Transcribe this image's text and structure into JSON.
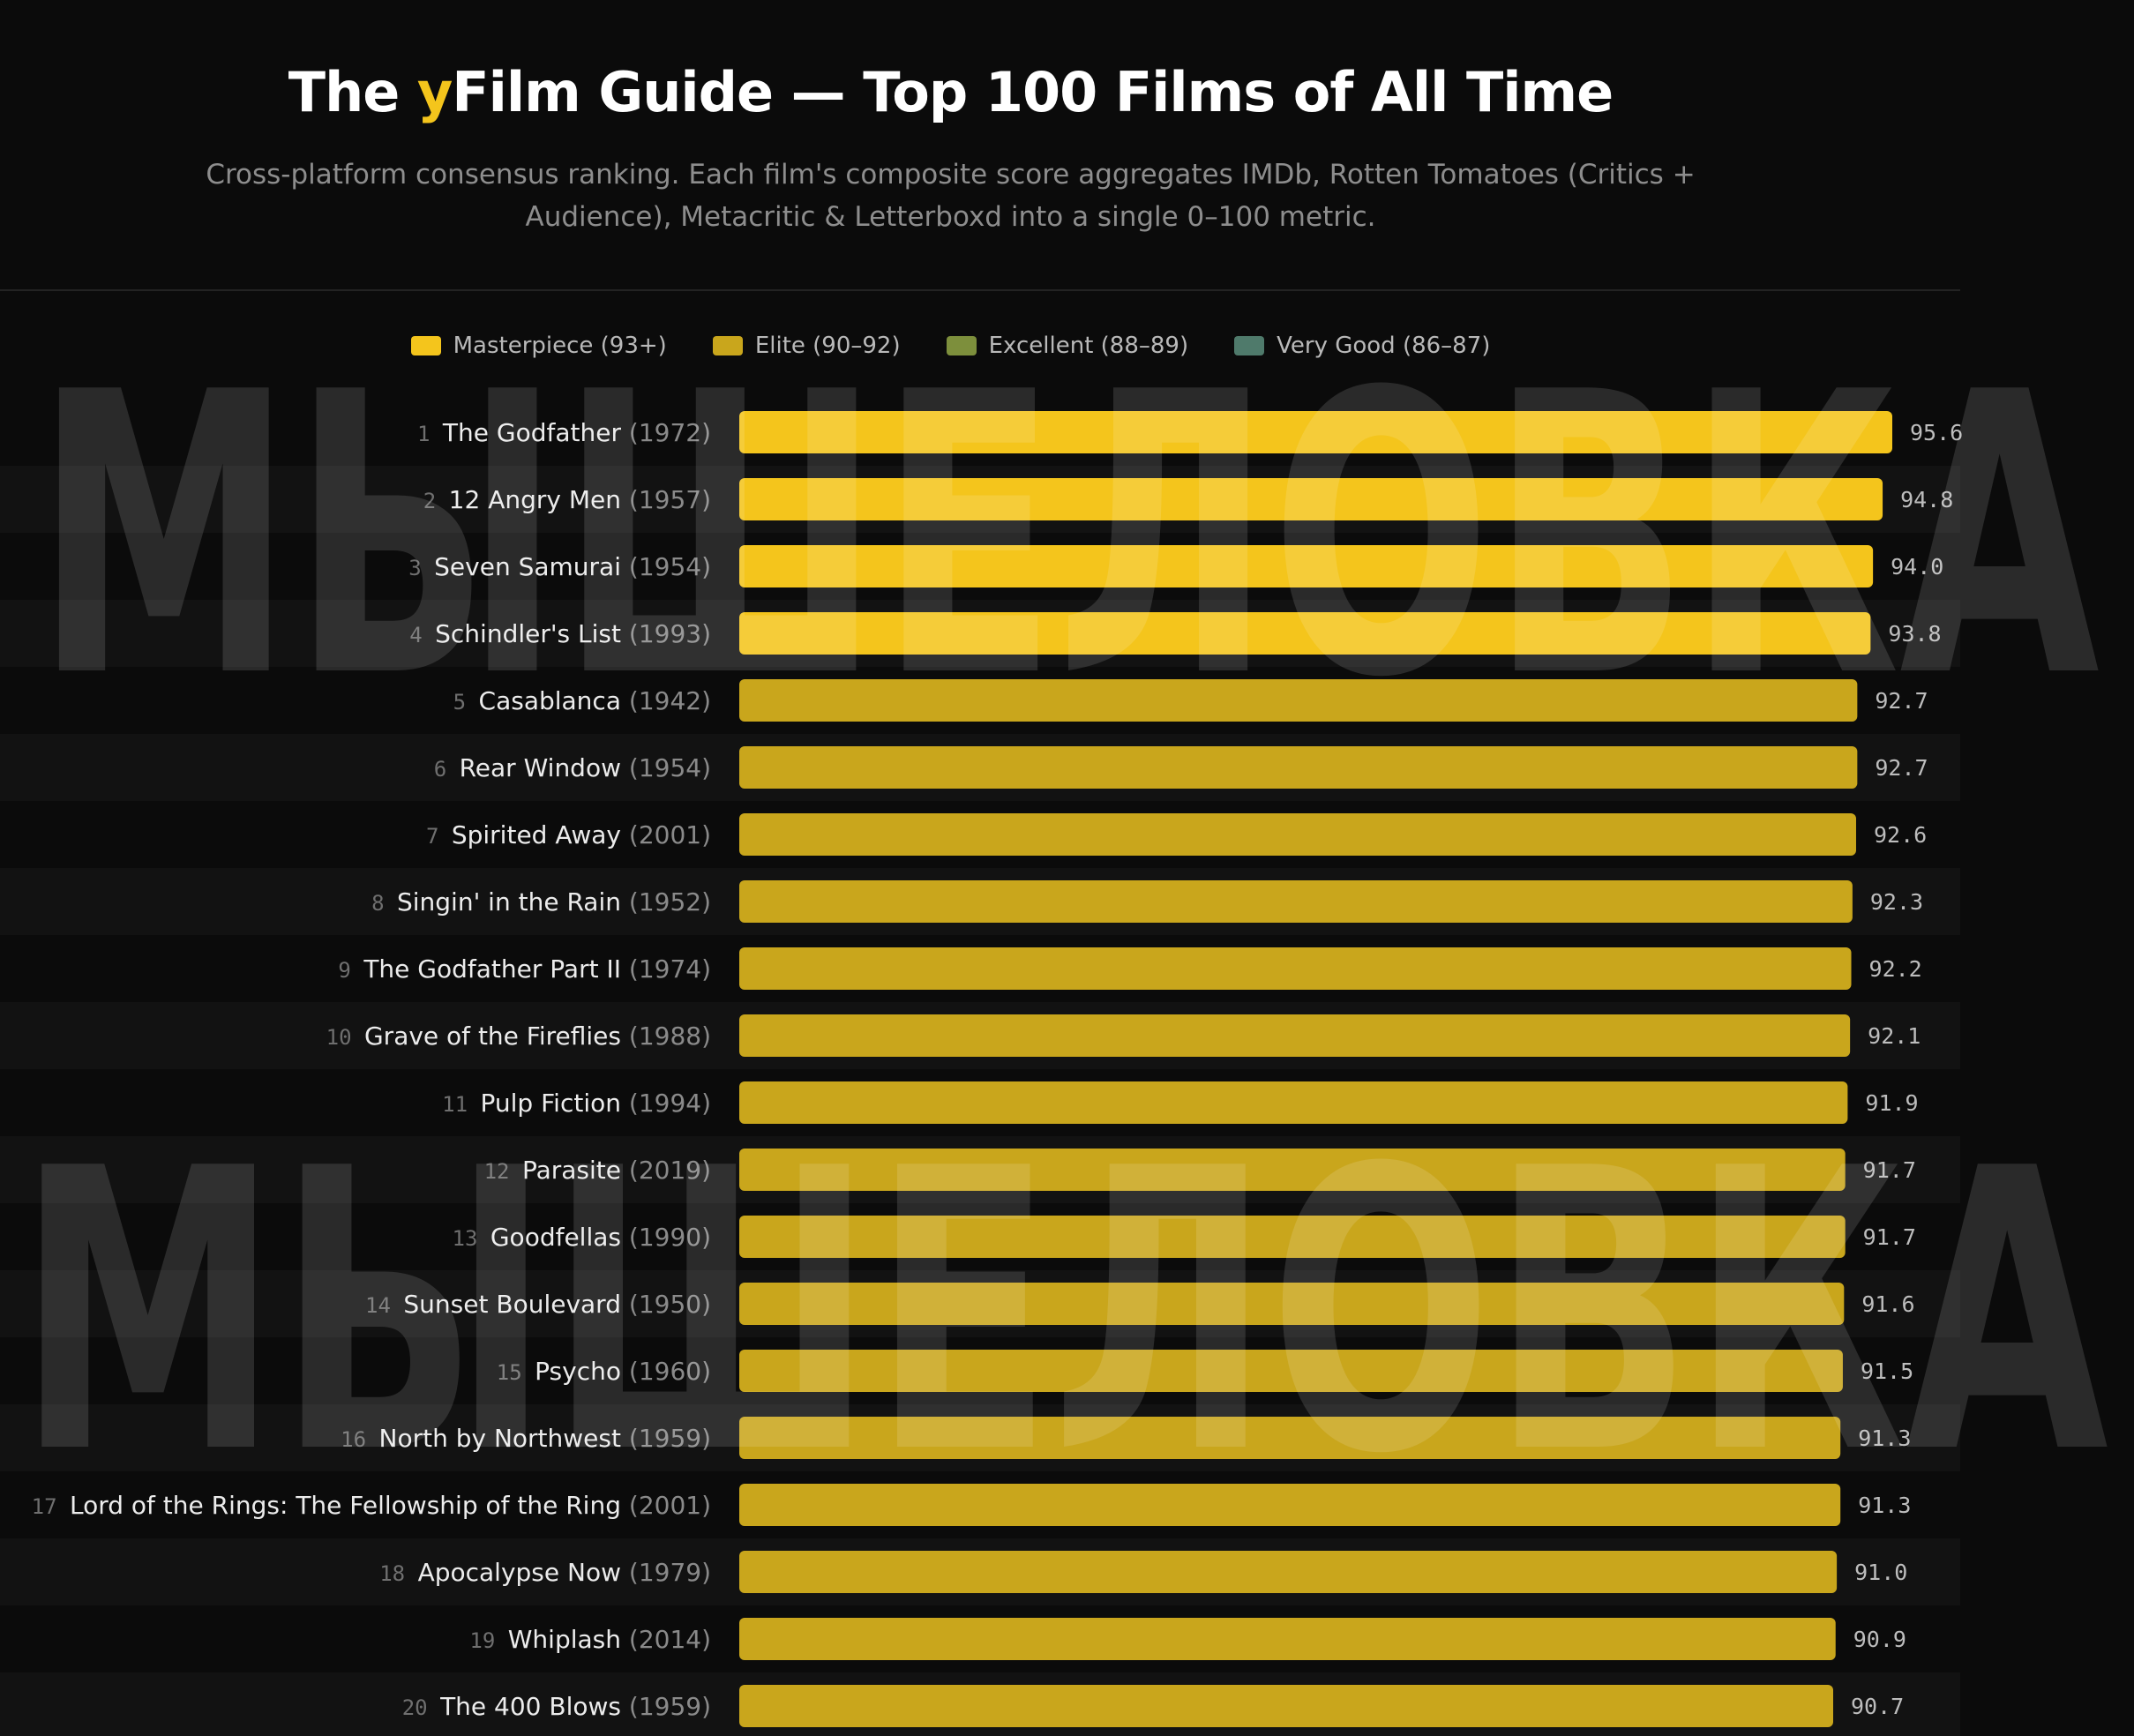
{
  "title": {
    "prefix": "The ",
    "accent": "y",
    "rest": "Film Guide — Top 100 Films of All Time"
  },
  "subtitle": "Cross-platform consensus ranking. Each film's composite score aggregates IMDb, Rotten Tomatoes (Critics + Audience), Metacritic & Letterboxd into a single 0–100 metric.",
  "legend": [
    {
      "label": "Masterpiece (93+)",
      "color": "#f4c51c"
    },
    {
      "label": "Elite (90–92)",
      "color": "#c9a61c"
    },
    {
      "label": "Excellent (88–89)",
      "color": "#7d8f3c"
    },
    {
      "label": "Very Good (86–87)",
      "color": "#4f7a6b"
    }
  ],
  "watermark": "МЫШЕЛОВКА",
  "chart_data": {
    "type": "bar",
    "orientation": "horizontal",
    "xlim": [
      0,
      95.6
    ],
    "grid": false,
    "legend_position": "top",
    "colors": {
      "masterpiece": "#f4c51c",
      "elite": "#c9a61c",
      "excellent": "#7d8f3c",
      "very_good": "#4f7a6b"
    },
    "rows": [
      {
        "rank": "1",
        "title": "The Godfather",
        "year": "(1972)",
        "value": 95.6,
        "label": "95.6",
        "tier": "masterpiece"
      },
      {
        "rank": "2",
        "title": "12 Angry Men",
        "year": "(1957)",
        "value": 94.8,
        "label": "94.8",
        "tier": "masterpiece"
      },
      {
        "rank": "3",
        "title": "Seven Samurai",
        "year": "(1954)",
        "value": 94.0,
        "label": "94.0",
        "tier": "masterpiece"
      },
      {
        "rank": "4",
        "title": "Schindler's List",
        "year": "(1993)",
        "value": 93.8,
        "label": "93.8",
        "tier": "masterpiece"
      },
      {
        "rank": "5",
        "title": "Casablanca",
        "year": "(1942)",
        "value": 92.7,
        "label": "92.7",
        "tier": "elite"
      },
      {
        "rank": "6",
        "title": "Rear Window",
        "year": "(1954)",
        "value": 92.7,
        "label": "92.7",
        "tier": "elite"
      },
      {
        "rank": "7",
        "title": "Spirited Away",
        "year": "(2001)",
        "value": 92.6,
        "label": "92.6",
        "tier": "elite"
      },
      {
        "rank": "8",
        "title": "Singin' in the Rain",
        "year": "(1952)",
        "value": 92.3,
        "label": "92.3",
        "tier": "elite"
      },
      {
        "rank": "9",
        "title": "The Godfather Part II",
        "year": "(1974)",
        "value": 92.2,
        "label": "92.2",
        "tier": "elite"
      },
      {
        "rank": "10",
        "title": "Grave of the Fireflies",
        "year": "(1988)",
        "value": 92.1,
        "label": "92.1",
        "tier": "elite"
      },
      {
        "rank": "11",
        "title": "Pulp Fiction",
        "year": "(1994)",
        "value": 91.9,
        "label": "91.9",
        "tier": "elite"
      },
      {
        "rank": "12",
        "title": "Parasite",
        "year": "(2019)",
        "value": 91.7,
        "label": "91.7",
        "tier": "elite"
      },
      {
        "rank": "13",
        "title": "Goodfellas",
        "year": "(1990)",
        "value": 91.7,
        "label": "91.7",
        "tier": "elite"
      },
      {
        "rank": "14",
        "title": "Sunset Boulevard",
        "year": "(1950)",
        "value": 91.6,
        "label": "91.6",
        "tier": "elite"
      },
      {
        "rank": "15",
        "title": "Psycho",
        "year": "(1960)",
        "value": 91.5,
        "label": "91.5",
        "tier": "elite"
      },
      {
        "rank": "16",
        "title": "North by Northwest",
        "year": "(1959)",
        "value": 91.3,
        "label": "91.3",
        "tier": "elite"
      },
      {
        "rank": "17",
        "title": "Lord of the Rings: The Fellowship of the Ring",
        "year": "(2001)",
        "value": 91.3,
        "label": "91.3",
        "tier": "elite"
      },
      {
        "rank": "18",
        "title": "Apocalypse Now",
        "year": "(1979)",
        "value": 91.0,
        "label": "91.0",
        "tier": "elite"
      },
      {
        "rank": "19",
        "title": "Whiplash",
        "year": "(2014)",
        "value": 90.9,
        "label": "90.9",
        "tier": "elite"
      },
      {
        "rank": "20",
        "title": "The 400 Blows",
        "year": "(1959)",
        "value": 90.7,
        "label": "90.7",
        "tier": "elite"
      }
    ]
  }
}
